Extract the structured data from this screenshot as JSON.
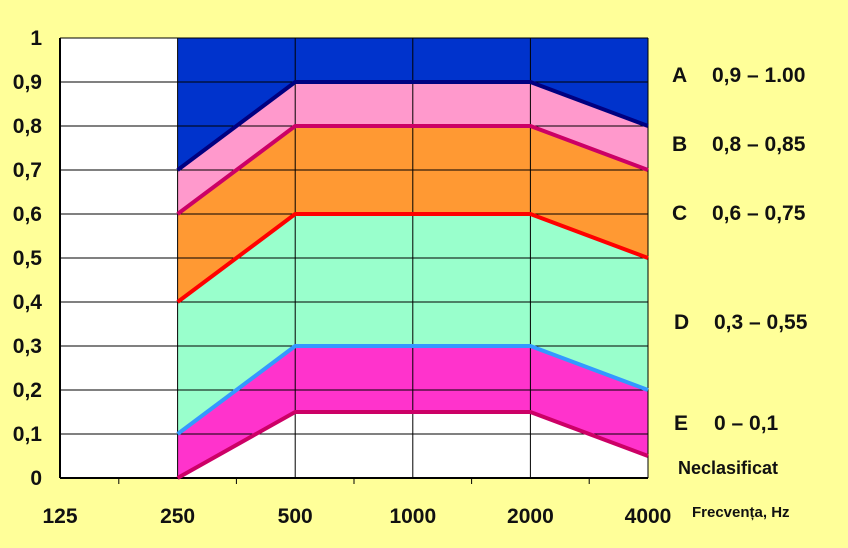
{
  "chart_data": {
    "type": "area",
    "categories": [
      "125",
      "250",
      "500",
      "1000",
      "2000",
      "4000"
    ],
    "xlabel": "Frecvența, Hz",
    "ylabel": "",
    "ylim": [
      0,
      1
    ],
    "yticks": [
      "0",
      "0,1",
      "0,2",
      "0,3",
      "0,4",
      "0,5",
      "0,6",
      "0,7",
      "0,8",
      "0,9",
      "1"
    ],
    "grid": true,
    "legend_placement": "right",
    "series": [
      {
        "name": "",
        "values": [
          null,
          0.7,
          0.9,
          0.9,
          0.9,
          0.8
        ],
        "line_color": "#000080"
      },
      {
        "name": "",
        "values": [
          null,
          0.6,
          0.8,
          0.8,
          0.8,
          0.7
        ],
        "line_color": "#CC0066"
      },
      {
        "name": "",
        "values": [
          null,
          0.4,
          0.6,
          0.6,
          0.6,
          0.5
        ],
        "line_color": "#FF0000"
      },
      {
        "name": "",
        "values": [
          null,
          0.1,
          0.3,
          0.3,
          0.3,
          0.2
        ],
        "line_color": "#3399FF"
      },
      {
        "name": "",
        "values": [
          null,
          0.0,
          0.15,
          0.15,
          0.15,
          0.05
        ],
        "line_color": "#CC0066"
      }
    ],
    "bands": [
      {
        "label": "A",
        "range": "0,9 – 1.00",
        "color": "#0033CC"
      },
      {
        "label": "B",
        "range": "0,8 – 0,85",
        "color": "#FF99CC"
      },
      {
        "label": "C",
        "range": "0,6 – 0,75",
        "color": "#FF9933"
      },
      {
        "label": "D",
        "range": "0,3 – 0,55",
        "color": "#99FFCC"
      },
      {
        "label": "E",
        "range": "0 – 0,1",
        "color": "#FF33CC"
      }
    ],
    "unclassified_label": "Neclasificat",
    "background_color": "#FFFF99",
    "plot_background": "#FFFFFF"
  }
}
